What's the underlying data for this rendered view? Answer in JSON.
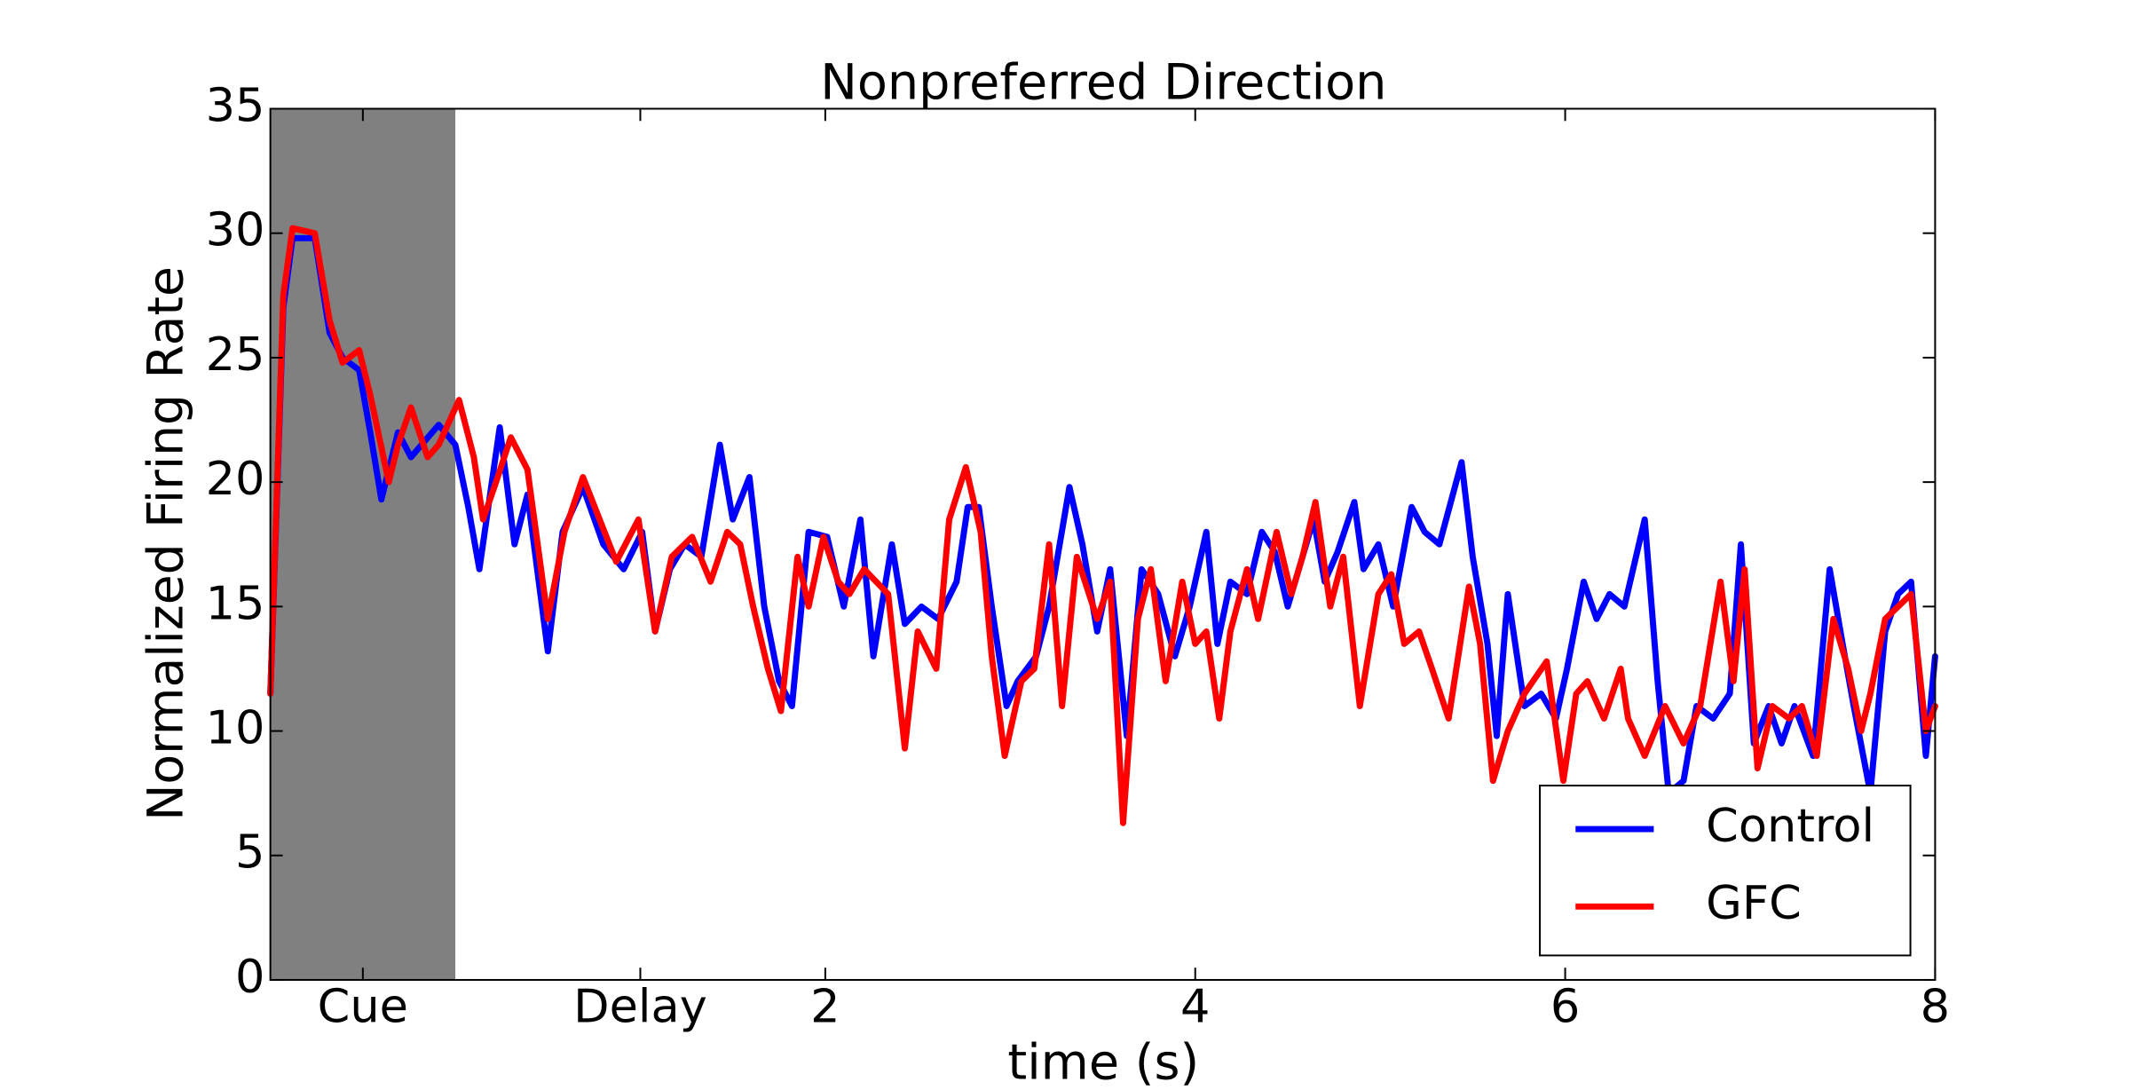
{
  "chart_data": {
    "type": "line",
    "title": "Nonpreferred Direction",
    "xlabel": "time (s)",
    "ylabel": "Normalized Firing Rate",
    "xlim": [
      -1,
      8
    ],
    "ylim": [
      0,
      35
    ],
    "xticks": [
      {
        "value": -0.5,
        "label": "Cue"
      },
      {
        "value": 1,
        "label": "Delay"
      },
      2,
      4,
      6,
      8
    ],
    "yticks": [
      0,
      5,
      10,
      15,
      20,
      25,
      30,
      35
    ],
    "grid": false,
    "legend": "lower right",
    "shaded_region": {
      "x": [
        -1,
        0
      ],
      "color": "#808080"
    },
    "series": [
      {
        "name": "Control",
        "color": "#0000ff",
        "x": [
          -1.0,
          -0.93,
          -0.88,
          -0.76,
          -0.68,
          -0.61,
          -0.52,
          -0.46,
          -0.4,
          -0.31,
          -0.24,
          -0.09,
          0.0,
          0.07,
          0.13,
          0.24,
          0.32,
          0.39,
          0.5,
          0.58,
          0.69,
          0.8,
          0.91,
          1.01,
          1.08,
          1.16,
          1.24,
          1.33,
          1.43,
          1.5,
          1.59,
          1.67,
          1.75,
          1.82,
          1.91,
          2.01,
          2.1,
          2.19,
          2.26,
          2.36,
          2.43,
          2.52,
          2.61,
          2.71,
          2.77,
          2.83,
          2.9,
          2.98,
          3.04,
          3.14,
          3.21,
          3.32,
          3.39,
          3.47,
          3.54,
          3.63,
          3.71,
          3.8,
          3.89,
          3.97,
          4.06,
          4.12,
          4.19,
          4.28,
          4.36,
          4.43,
          4.5,
          4.64,
          4.7,
          4.77,
          4.86,
          4.91,
          4.99,
          5.07,
          5.17,
          5.24,
          5.32,
          5.44,
          5.5,
          5.58,
          5.63,
          5.69,
          5.78,
          5.87,
          5.95,
          6.01,
          6.1,
          6.17,
          6.24,
          6.32,
          6.43,
          6.5,
          6.56,
          6.64,
          6.71,
          6.8,
          6.89,
          6.95,
          7.02,
          7.1,
          7.17,
          7.24,
          7.34,
          7.43,
          7.5,
          7.56,
          7.65,
          7.73,
          7.8,
          7.87,
          7.95,
          8.0
        ],
        "values": [
          11.5,
          27,
          29.8,
          29.8,
          26,
          25,
          24.5,
          22,
          19.3,
          22,
          21,
          22.3,
          21.5,
          19,
          16.5,
          22.2,
          17.5,
          19.5,
          13.2,
          18,
          19.8,
          17.5,
          16.5,
          18,
          14,
          16.5,
          17.5,
          17,
          21.5,
          18.5,
          20.2,
          15,
          12,
          11,
          18,
          17.8,
          15,
          18.5,
          13,
          17.5,
          14.3,
          15,
          14.5,
          16,
          19,
          19,
          15,
          11,
          12,
          13,
          15,
          19.8,
          17.5,
          14,
          16.5,
          9.8,
          16.5,
          15.5,
          13,
          15,
          18,
          13.5,
          16,
          15.5,
          18,
          17.2,
          15,
          18.5,
          16,
          17.2,
          19.2,
          16.5,
          17.5,
          15,
          19,
          18,
          17.5,
          20.8,
          17,
          13.5,
          9.8,
          15.5,
          11,
          11.5,
          10.5,
          12.5,
          16,
          14.5,
          15.5,
          15,
          18.5,
          12,
          7.5,
          8,
          11,
          10.5,
          11.5,
          17.5,
          9.5,
          11,
          9.5,
          11,
          9,
          16.5,
          13.5,
          11,
          7.5,
          14,
          15.5,
          16,
          9,
          13
        ]
      },
      {
        "name": "GFC",
        "color": "#ff0000",
        "x": [
          -1.0,
          -0.93,
          -0.88,
          -0.76,
          -0.68,
          -0.61,
          -0.52,
          -0.46,
          -0.36,
          -0.31,
          -0.24,
          -0.15,
          -0.09,
          0.02,
          0.1,
          0.15,
          0.22,
          0.3,
          0.39,
          0.5,
          0.59,
          0.69,
          0.78,
          0.87,
          0.99,
          1.08,
          1.17,
          1.28,
          1.38,
          1.47,
          1.54,
          1.61,
          1.69,
          1.76,
          1.85,
          1.91,
          1.99,
          2.07,
          2.13,
          2.21,
          2.34,
          2.43,
          2.5,
          2.6,
          2.67,
          2.76,
          2.84,
          2.9,
          2.97,
          3.06,
          3.13,
          3.21,
          3.28,
          3.36,
          3.47,
          3.54,
          3.61,
          3.69,
          3.76,
          3.84,
          3.93,
          4.0,
          4.06,
          4.13,
          4.19,
          4.28,
          4.34,
          4.44,
          4.52,
          4.58,
          4.65,
          4.73,
          4.8,
          4.89,
          4.99,
          5.06,
          5.13,
          5.21,
          5.28,
          5.37,
          5.48,
          5.54,
          5.61,
          5.69,
          5.78,
          5.9,
          5.99,
          6.06,
          6.12,
          6.21,
          6.3,
          6.34,
          6.43,
          6.54,
          6.64,
          6.73,
          6.84,
          6.91,
          6.97,
          7.04,
          7.12,
          7.21,
          7.28,
          7.36,
          7.45,
          7.53,
          7.6,
          7.65,
          7.73,
          7.8,
          7.87,
          7.95,
          8.0
        ],
        "values": [
          11.5,
          27.5,
          30.2,
          30,
          26.5,
          24.8,
          25.3,
          23.5,
          20,
          21.5,
          23,
          21,
          21.5,
          23.3,
          21,
          18.5,
          20,
          21.8,
          20.5,
          14.5,
          18,
          20.2,
          18.5,
          16.8,
          18.5,
          14,
          17,
          17.8,
          16,
          18,
          17.5,
          15,
          12.5,
          10.8,
          17,
          15,
          17.8,
          16,
          15.5,
          16.5,
          15.5,
          9.3,
          14,
          12.5,
          18.5,
          20.6,
          18,
          13,
          9,
          12,
          12.5,
          17.5,
          11,
          17,
          14.5,
          16,
          6.3,
          14.5,
          16.5,
          12,
          16,
          13.5,
          14,
          10.5,
          14,
          16.5,
          14.5,
          18,
          15.5,
          17,
          19.2,
          15,
          17,
          11,
          15.5,
          16.3,
          13.5,
          14,
          12.5,
          10.5,
          15.8,
          13.5,
          8,
          10,
          11.5,
          12.8,
          8,
          11.5,
          12,
          10.5,
          12.5,
          10.5,
          9,
          11,
          9.5,
          11,
          16,
          12,
          16.5,
          8.5,
          11,
          10.5,
          11,
          9,
          14.5,
          12.5,
          10,
          11.5,
          14.5,
          15,
          15.5,
          10,
          11
        ]
      }
    ]
  }
}
